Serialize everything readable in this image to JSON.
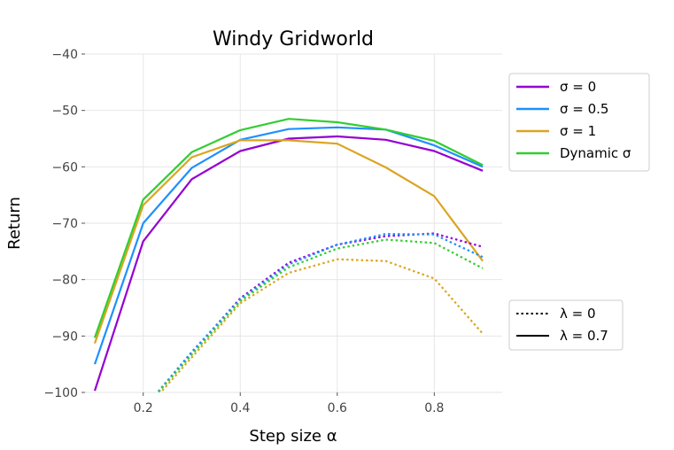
{
  "chart_data": {
    "type": "line",
    "title": "Windy Gridworld",
    "xlabel": "Step size α",
    "ylabel": "Return",
    "xlim": [
      0.08,
      0.94
    ],
    "ylim": [
      -100,
      -40
    ],
    "xticks": [
      0.2,
      0.4,
      0.6,
      0.8
    ],
    "xtick_labels": [
      "0.2",
      "0.4",
      "0.6",
      "0.8"
    ],
    "yticks": [
      -100,
      -90,
      -80,
      -70,
      -60,
      -50,
      -40
    ],
    "ytick_labels": [
      "−100",
      "−90",
      "−80",
      "−70",
      "−60",
      "−50",
      "−40"
    ],
    "grid": true,
    "x": [
      0.1,
      0.2,
      0.3,
      0.4,
      0.5,
      0.6,
      0.7,
      0.8,
      0.9
    ],
    "series": [
      {
        "name": "σ = 0",
        "color": "#9400d3",
        "dash": "solid",
        "values": [
          -99.7,
          -73.2,
          -62.2,
          -57.2,
          -55.0,
          -54.6,
          -55.2,
          -57.2,
          -60.7
        ]
      },
      {
        "name": "σ = 0.5",
        "color": "#1e90ff",
        "dash": "solid",
        "values": [
          -95.0,
          -70.0,
          -60.2,
          -55.2,
          -53.3,
          -53.0,
          -53.4,
          -56.2,
          -60.0
        ]
      },
      {
        "name": "σ = 1",
        "color": "#daa520",
        "dash": "solid",
        "values": [
          -91.3,
          -66.8,
          -58.3,
          -55.3,
          -55.3,
          -55.9,
          -60.1,
          -65.2,
          -76.7
        ]
      },
      {
        "name": "Dynamic σ",
        "color": "#32cd32",
        "dash": "solid",
        "values": [
          -90.3,
          -65.8,
          -57.4,
          -53.5,
          -51.5,
          -52.1,
          -53.4,
          -55.4,
          -59.7
        ]
      },
      {
        "name": "σ = 0",
        "color": "#9400d3",
        "dash": "dotted",
        "values": [
          -105.0,
          -103.0,
          -93.0,
          -83.3,
          -77.0,
          -73.8,
          -72.3,
          -71.8,
          -74.2
        ]
      },
      {
        "name": "σ = 0.5",
        "color": "#1e90ff",
        "dash": "dotted",
        "values": [
          -105.0,
          -103.0,
          -92.8,
          -83.5,
          -77.3,
          -73.8,
          -71.9,
          -72.0,
          -76.0
        ]
      },
      {
        "name": "σ = 1",
        "color": "#daa520",
        "dash": "dotted",
        "values": [
          -105.0,
          -103.5,
          -93.8,
          -84.2,
          -78.8,
          -76.4,
          -76.7,
          -79.8,
          -89.6
        ]
      },
      {
        "name": "Dynamic σ",
        "color": "#32cd32",
        "dash": "dotted",
        "values": [
          -105.0,
          -103.0,
          -93.3,
          -83.8,
          -77.8,
          -74.5,
          -72.9,
          -73.5,
          -78.0
        ]
      }
    ],
    "legend_sigma": {
      "placement": "right-upper",
      "entries": [
        {
          "label": "σ = 0",
          "color": "#9400d3"
        },
        {
          "label": "σ = 0.5",
          "color": "#1e90ff"
        },
        {
          "label": "σ = 1",
          "color": "#daa520"
        },
        {
          "label": "Dynamic σ",
          "color": "#32cd32"
        }
      ]
    },
    "legend_lambda": {
      "placement": "right-lower",
      "entries": [
        {
          "label": "λ = 0",
          "dash": "dotted",
          "color": "#000000"
        },
        {
          "label": "λ = 0.7",
          "dash": "solid",
          "color": "#000000"
        }
      ]
    }
  }
}
